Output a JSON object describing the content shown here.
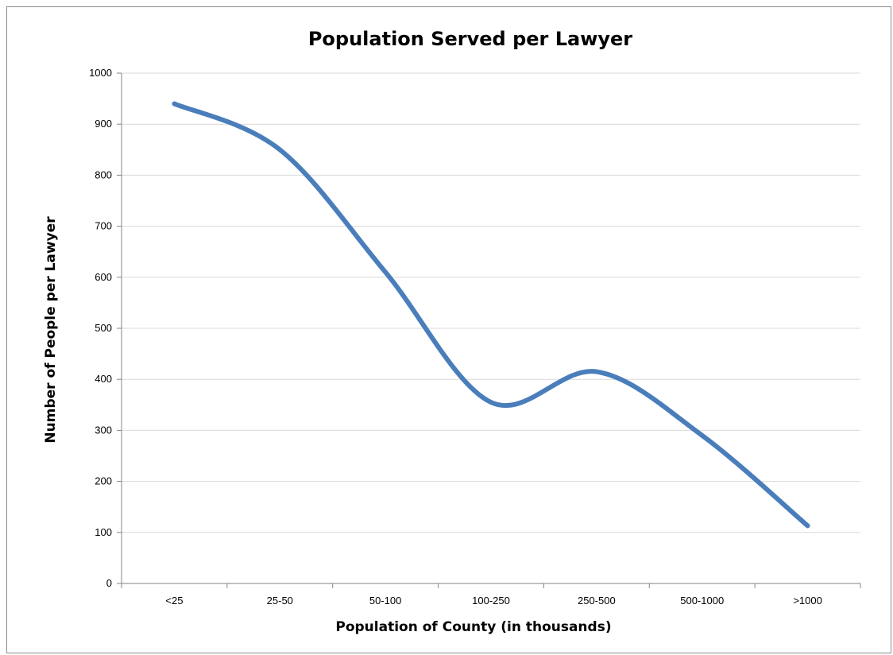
{
  "chart_data": {
    "type": "line",
    "title": "Population Served per Lawyer",
    "xlabel": "Population of County (in thousands)",
    "ylabel": "Number of People per Lawyer",
    "categories": [
      "<25",
      "25-50",
      "50-100",
      "100-250",
      "250-500",
      "500-1000",
      ">1000"
    ],
    "series": [
      {
        "values": [
          940,
          850,
          610,
          355,
          415,
          290,
          113
        ]
      }
    ],
    "ylim": [
      0,
      1000
    ],
    "yticks": [
      "0",
      "100",
      "200",
      "300",
      "400",
      "500",
      "600",
      "700",
      "800",
      "900",
      "1000"
    ],
    "smooth": true,
    "grid": true,
    "legend": "none",
    "colors": {
      "series": "#4a7ebb",
      "grid": "#d9d9d9",
      "axis": "#868686"
    }
  }
}
